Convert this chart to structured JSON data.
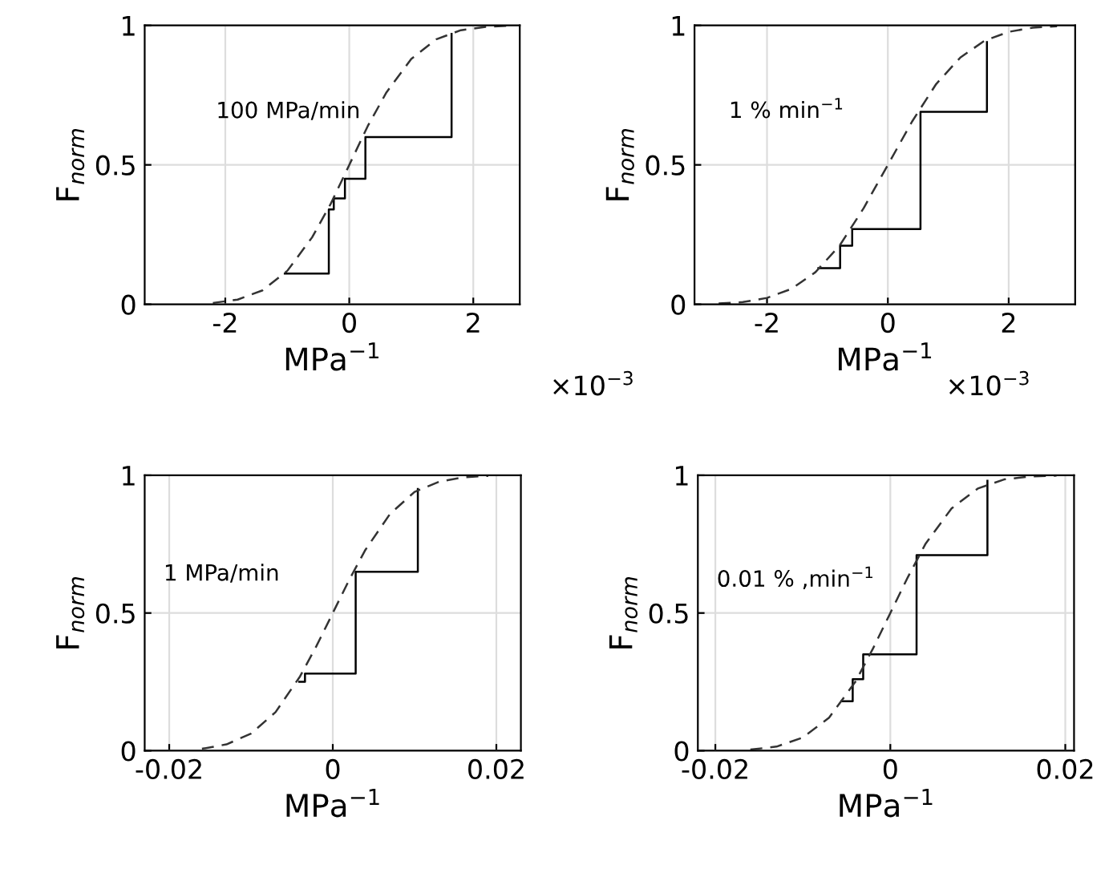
{
  "chart_data": [
    {
      "type": "step",
      "xlabel": "MPa$^{−1}$",
      "ylabel": "F$_{norm}$",
      "annotations": [
        "100 MPa/min",
        "×10$^{−3}$"
      ],
      "xlim": [
        -3.3,
        2.75
      ],
      "ylim": [
        0,
        1
      ],
      "xticks": [
        -2,
        0,
        2
      ],
      "yticks": [
        0,
        0.5,
        1
      ],
      "grid": true,
      "series": [
        {
          "color": "#000000",
          "line_style": "solid",
          "x": [
            -1.04,
            -0.33,
            -0.25,
            -0.07,
            0.26,
            1.65
          ],
          "values": [
            0.11,
            0.34,
            0.38,
            0.45,
            0.6,
            0.97
          ]
        },
        {
          "type": "line",
          "color": "#333333",
          "line_style": "dashed",
          "x": [
            -2.2,
            -1.8,
            -1.4,
            -1.0,
            -0.6,
            -0.3,
            0,
            0.3,
            0.6,
            1.0,
            1.4,
            1.8,
            2.2,
            2.6
          ],
          "values": [
            0.005,
            0.017,
            0.05,
            0.12,
            0.24,
            0.36,
            0.5,
            0.64,
            0.76,
            0.88,
            0.95,
            0.983,
            0.995,
            0.999
          ]
        }
      ]
    },
    {
      "type": "step",
      "xlabel": "MPa$^{−1}$",
      "ylabel": "F$_{norm}$",
      "annotations": [
        "1 % min$^{−1}$",
        "×10$^{−3}$"
      ],
      "xlim": [
        -3.2,
        3.1
      ],
      "ylim": [
        0,
        1
      ],
      "xticks": [
        -2,
        0,
        2
      ],
      "yticks": [
        0,
        0.5,
        1
      ],
      "grid": true,
      "series": [
        {
          "color": "#000000",
          "line_style": "solid",
          "x": [
            -1.15,
            -0.79,
            -0.59,
            0.54,
            1.64
          ],
          "values": [
            0.13,
            0.21,
            0.27,
            0.69,
            0.94
          ]
        },
        {
          "type": "line",
          "color": "#333333",
          "line_style": "dashed",
          "x": [
            -2.8,
            -2.4,
            -2.0,
            -1.6,
            -1.2,
            -0.8,
            -0.4,
            0,
            0.4,
            0.8,
            1.2,
            1.6,
            2.0,
            2.4,
            2.8
          ],
          "values": [
            0.003,
            0.008,
            0.023,
            0.055,
            0.115,
            0.21,
            0.345,
            0.5,
            0.655,
            0.79,
            0.885,
            0.945,
            0.977,
            0.992,
            0.997
          ]
        }
      ]
    },
    {
      "type": "step",
      "xlabel": "MPa$^{−1}$",
      "ylabel": "F$_{norm}$",
      "annotations": [
        "1 MPa/min"
      ],
      "xlim": [
        -0.023,
        0.023
      ],
      "ylim": [
        0,
        1
      ],
      "xticks": [
        {
          "value": -0.02,
          "label": "-0.02"
        },
        0,
        0.02
      ],
      "yticks": [
        0,
        0.5,
        1
      ],
      "grid": true,
      "series": [
        {
          "color": "#000000",
          "line_style": "solid",
          "x": [
            -0.0041,
            -0.0034,
            0.0028,
            0.0104
          ],
          "values": [
            0.25,
            0.28,
            0.65,
            0.95
          ]
        },
        {
          "type": "line",
          "color": "#333333",
          "line_style": "dashed",
          "x": [
            -0.016,
            -0.013,
            -0.01,
            -0.007,
            -0.004,
            -0.002,
            0,
            0.002,
            0.004,
            0.007,
            0.01,
            0.013,
            0.016,
            0.019
          ],
          "values": [
            0.007,
            0.023,
            0.062,
            0.14,
            0.27,
            0.38,
            0.5,
            0.62,
            0.73,
            0.86,
            0.94,
            0.977,
            0.993,
            0.998
          ]
        }
      ]
    },
    {
      "type": "step",
      "xlabel": "MPa$^{−1}$",
      "ylabel": "F$_{norm}$",
      "annotations": [
        "0.01 % ,min$^{−1}$"
      ],
      "xlim": [
        -0.022,
        0.021
      ],
      "ylim": [
        0,
        1
      ],
      "xticks": [
        {
          "value": -0.02,
          "label": "-0.02"
        },
        0,
        0.02
      ],
      "yticks": [
        0,
        0.5,
        1
      ],
      "grid": true,
      "series": [
        {
          "color": "#000000",
          "line_style": "solid",
          "x": [
            -0.0056,
            -0.0043,
            -0.0031,
            0.003,
            0.0111
          ],
          "values": [
            0.18,
            0.26,
            0.35,
            0.71,
            0.98
          ]
        },
        {
          "type": "line",
          "color": "#333333",
          "line_style": "dashed",
          "x": [
            -0.016,
            -0.013,
            -0.01,
            -0.007,
            -0.004,
            -0.002,
            0,
            0.002,
            0.004,
            0.007,
            0.01,
            0.013,
            0.016,
            0.019
          ],
          "values": [
            0.004,
            0.015,
            0.048,
            0.12,
            0.25,
            0.37,
            0.5,
            0.63,
            0.75,
            0.88,
            0.952,
            0.985,
            0.996,
            0.999
          ]
        }
      ]
    }
  ]
}
